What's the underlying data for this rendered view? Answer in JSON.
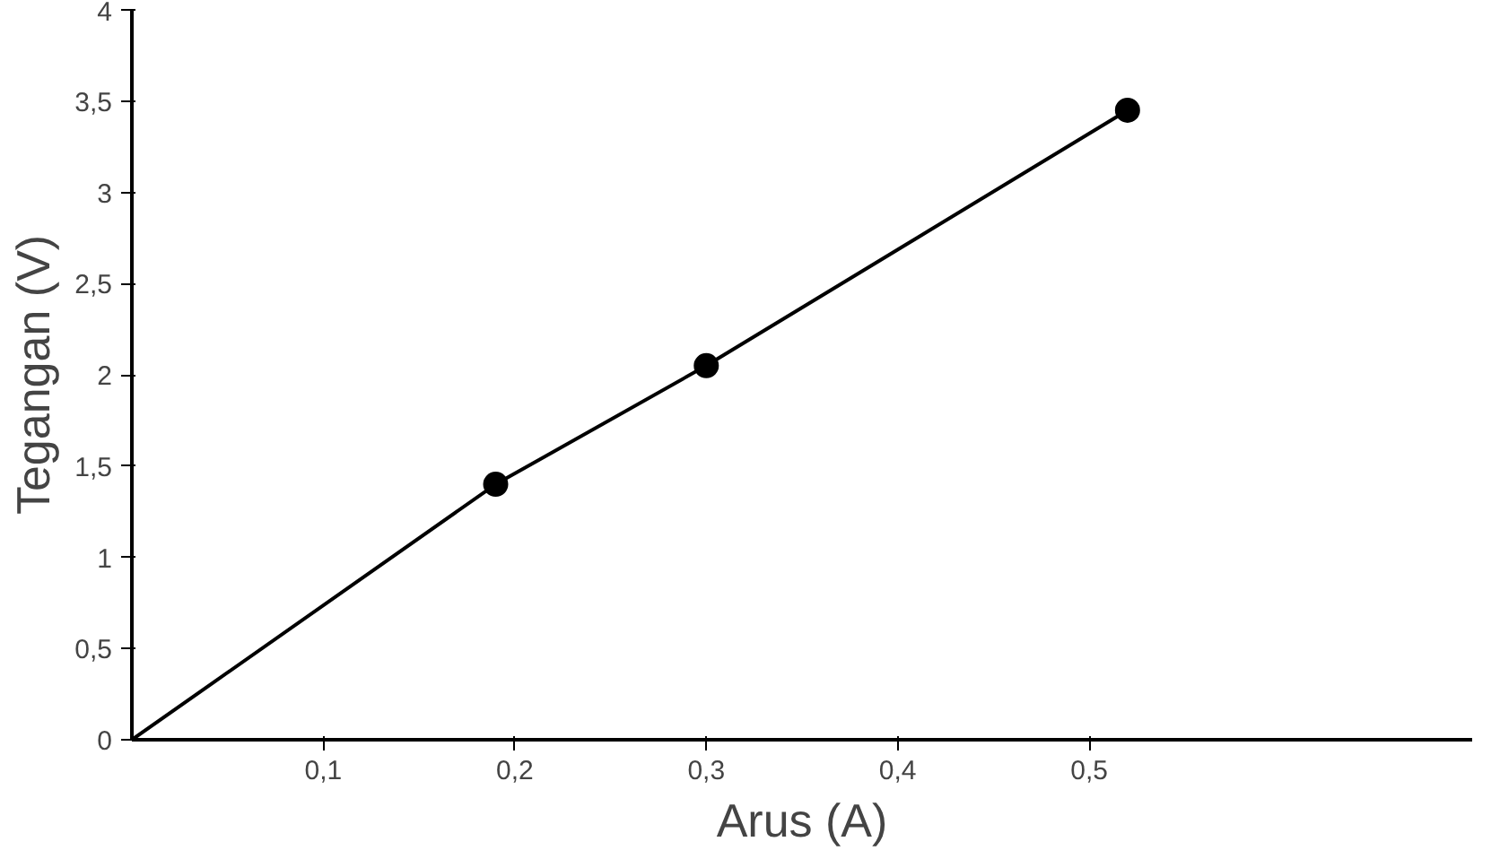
{
  "chart_data": {
    "type": "line",
    "xlabel": "Arus (A)",
    "ylabel": "Tegangan (V)",
    "series": [
      {
        "color": "#000000",
        "x": [
          0,
          0.19,
          0.3,
          0.52
        ],
        "values": [
          0,
          1.4,
          2.05,
          3.45
        ],
        "marker": "none"
      },
      {
        "type": "scatter",
        "color": "#000000",
        "x": [
          0.19,
          0.3,
          0.52
        ],
        "values": [
          1.4,
          2.05,
          3.45
        ],
        "marker": "circle"
      }
    ],
    "xlim": [
      0,
      0.7
    ],
    "ylim": [
      0,
      4
    ],
    "xticks": [
      {
        "value": 0.1,
        "label": "0,1"
      },
      {
        "value": 0.2,
        "label": "0,2"
      },
      {
        "value": 0.3,
        "label": "0,3"
      },
      {
        "value": 0.4,
        "label": "0,4"
      },
      {
        "value": 0.5,
        "label": "0,5"
      }
    ],
    "yticks": [
      0,
      {
        "value": 0.5,
        "label": "0,5"
      },
      1,
      {
        "value": 1.5,
        "label": "1,5"
      },
      2,
      {
        "value": 2.5,
        "label": "2,5"
      },
      3,
      {
        "value": 3.5,
        "label": "3,5"
      },
      4
    ],
    "grid": false
  }
}
